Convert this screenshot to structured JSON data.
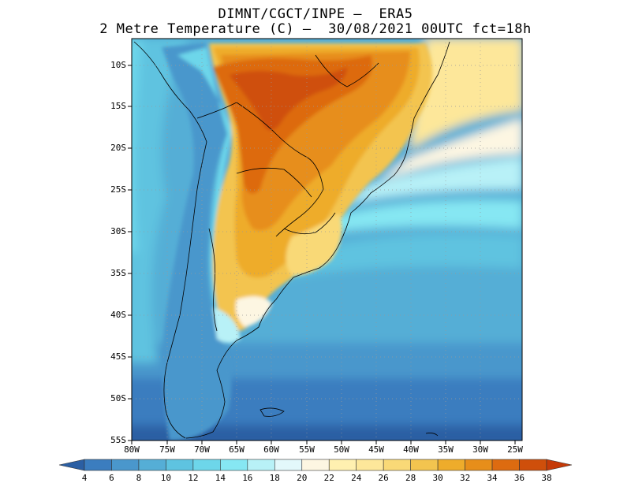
{
  "title_line1": "DIMNT/CGCT/INPE –  ERA5",
  "title_line2": "2 Metre Temperature (C) –  30/08/2021 00UTC fct=18h",
  "lat_labels": [
    "10S",
    "15S",
    "20S",
    "25S",
    "30S",
    "35S",
    "40S",
    "45S",
    "50S",
    "55S"
  ],
  "lon_labels": [
    "80W",
    "75W",
    "70W",
    "65W",
    "60W",
    "55W",
    "50W",
    "45W",
    "40W",
    "35W",
    "30W",
    "25W"
  ],
  "colorbar": {
    "labels": [
      "4",
      "6",
      "8",
      "10",
      "12",
      "14",
      "16",
      "18",
      "20",
      "22",
      "24",
      "26",
      "28",
      "30",
      "32",
      "34",
      "36",
      "38"
    ],
    "colors": [
      "#2b5fa3",
      "#3b7dbf",
      "#4a97cc",
      "#55aed6",
      "#5ec3e0",
      "#6dd6ea",
      "#86e7f3",
      "#b8f1f7",
      "#e3f8fb",
      "#fdf6e2",
      "#fff0b0",
      "#fde79a",
      "#f9d977",
      "#f3c44f",
      "#eeac2b",
      "#e78e1a",
      "#dd6b10",
      "#cf4f0b",
      "#c53a08"
    ]
  },
  "legend_colors": {
    "ocean_cold": "#2b5fa3",
    "ocean_cool": "#55aed6",
    "ocean_mild": "#86e7f3",
    "land_hot": "#dd6b10",
    "land_warm": "#f3c44f"
  }
}
